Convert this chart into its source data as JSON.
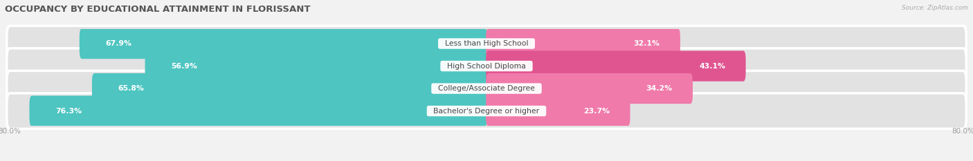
{
  "title": "OCCUPANCY BY EDUCATIONAL ATTAINMENT IN FLORISSANT",
  "source": "Source: ZipAtlas.com",
  "categories": [
    "Less than High School",
    "High School Diploma",
    "College/Associate Degree",
    "Bachelor's Degree or higher"
  ],
  "owner_values": [
    67.9,
    56.9,
    65.8,
    76.3
  ],
  "renter_values": [
    32.1,
    43.1,
    34.2,
    23.7
  ],
  "owner_color": "#4ec5c1",
  "renter_color": "#f07aaa",
  "renter_color_dark": "#e05590",
  "background_color": "#f2f2f2",
  "bar_bg_color": "#e2e2e2",
  "x_min": -80.0,
  "x_max": 80.0,
  "title_fontsize": 9.5,
  "label_fontsize": 7.8,
  "value_fontsize": 7.8,
  "tick_fontsize": 7.5
}
